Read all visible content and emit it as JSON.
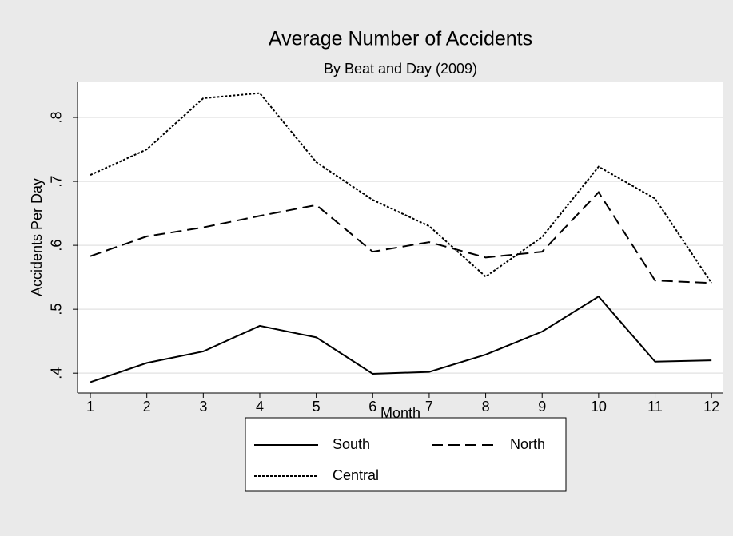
{
  "chart_data": {
    "type": "line",
    "title": "Average Number of Accidents",
    "subtitle": "By Beat and Day (2009)",
    "x_label": "Month",
    "y_label": "Accidents Per Day",
    "x": [
      1,
      2,
      3,
      4,
      5,
      6,
      7,
      8,
      9,
      10,
      11,
      12
    ],
    "xlim": [
      0.773,
      12.21
    ],
    "xticks": [
      1,
      2,
      3,
      4,
      5,
      6,
      7,
      8,
      9,
      10,
      11,
      12
    ],
    "ylim": [
      0.369,
      0.855
    ],
    "yticks": [
      {
        "value": 0.4,
        "label": ".4"
      },
      {
        "value": 0.5,
        "label": ".5"
      },
      {
        "value": 0.6,
        "label": ".6"
      },
      {
        "value": 0.7,
        "label": ".7"
      },
      {
        "value": 0.8,
        "label": ".8"
      }
    ],
    "grid": true,
    "legend": "bottom",
    "series": [
      {
        "name": "South",
        "color": "#000000",
        "line_style": "solid",
        "values": [
          0.386,
          0.416,
          0.434,
          0.474,
          0.456,
          0.399,
          0.402,
          0.429,
          0.465,
          0.52,
          0.418,
          0.42
        ]
      },
      {
        "name": "North",
        "color": "#000000",
        "line_style": "dashed",
        "values": [
          0.583,
          0.614,
          0.628,
          0.646,
          0.663,
          0.59,
          0.605,
          0.581,
          0.59,
          0.683,
          0.545,
          0.541
        ]
      },
      {
        "name": "Central",
        "color": "#000000",
        "line_style": "dotted",
        "values": [
          0.71,
          0.75,
          0.83,
          0.838,
          0.73,
          0.671,
          0.63,
          0.551,
          0.613,
          0.723,
          0.673,
          0.541
        ]
      }
    ]
  }
}
